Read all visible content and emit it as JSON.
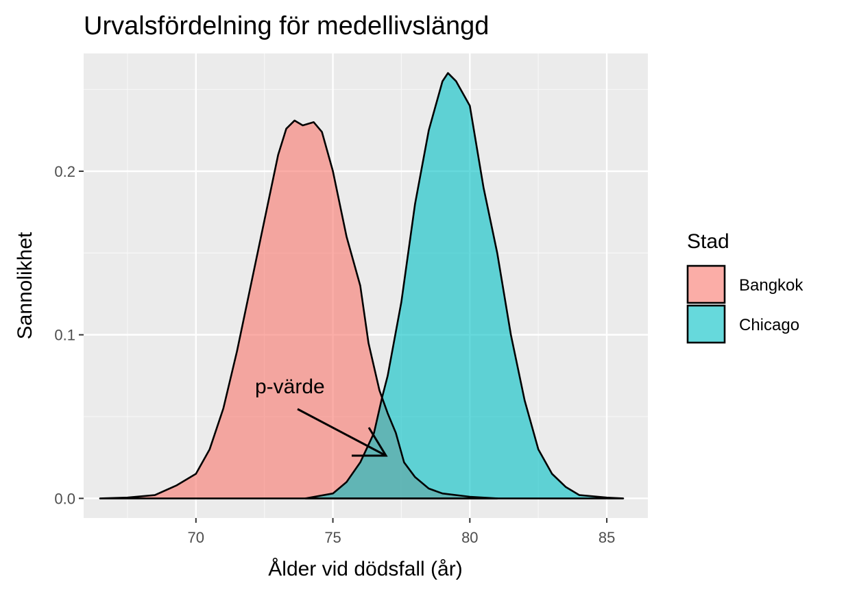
{
  "chart_data": {
    "type": "area",
    "title": "Urvalsfördelning för medellivslängd",
    "xlabel": "Ålder vid dödsfall (år)",
    "ylabel": "Sannolikhet",
    "xlim": [
      65.9,
      86.5
    ],
    "ylim": [
      -0.012,
      0.272
    ],
    "x_ticks": [
      70,
      75,
      80,
      85
    ],
    "x_tick_labels": [
      "70",
      "75",
      "80",
      "85"
    ],
    "x_minor_ticks": [
      67.5,
      72.5,
      77.5,
      82.5
    ],
    "y_ticks": [
      0.0,
      0.1,
      0.2
    ],
    "y_tick_labels": [
      "0.0",
      "0.1",
      "0.2"
    ],
    "y_minor_ticks": [
      0.05,
      0.15,
      0.25
    ],
    "grid": true,
    "legend": {
      "title": "Stad",
      "position": "right"
    },
    "overlap_color": "#7fa8a8",
    "series": [
      {
        "name": "Bangkok",
        "color": "#f8766d",
        "points": [
          [
            66.5,
            0.0
          ],
          [
            67.5,
            0.0005
          ],
          [
            68.5,
            0.002
          ],
          [
            69.3,
            0.008
          ],
          [
            70.0,
            0.015
          ],
          [
            70.5,
            0.03
          ],
          [
            71.0,
            0.055
          ],
          [
            71.5,
            0.09
          ],
          [
            72.0,
            0.13
          ],
          [
            72.5,
            0.17
          ],
          [
            73.0,
            0.21
          ],
          [
            73.3,
            0.226
          ],
          [
            73.6,
            0.231
          ],
          [
            73.9,
            0.228
          ],
          [
            74.3,
            0.23
          ],
          [
            74.6,
            0.224
          ],
          [
            75.0,
            0.2
          ],
          [
            75.5,
            0.16
          ],
          [
            76.0,
            0.13
          ],
          [
            76.3,
            0.095
          ],
          [
            76.7,
            0.066
          ],
          [
            77.0,
            0.052
          ],
          [
            77.3,
            0.04
          ],
          [
            77.6,
            0.022
          ],
          [
            78.0,
            0.013
          ],
          [
            78.5,
            0.006
          ],
          [
            79.0,
            0.003
          ],
          [
            80.0,
            0.001
          ],
          [
            81.0,
            0.0
          ]
        ]
      },
      {
        "name": "Chicago",
        "color": "#00bfc4",
        "points": [
          [
            74.0,
            0.0
          ],
          [
            75.0,
            0.003
          ],
          [
            75.5,
            0.01
          ],
          [
            76.0,
            0.022
          ],
          [
            76.5,
            0.04
          ],
          [
            76.8,
            0.062
          ],
          [
            77.0,
            0.075
          ],
          [
            77.5,
            0.12
          ],
          [
            78.0,
            0.18
          ],
          [
            78.5,
            0.225
          ],
          [
            79.0,
            0.255
          ],
          [
            79.2,
            0.26
          ],
          [
            79.5,
            0.255
          ],
          [
            80.0,
            0.24
          ],
          [
            80.5,
            0.19
          ],
          [
            81.0,
            0.15
          ],
          [
            81.5,
            0.1
          ],
          [
            82.0,
            0.06
          ],
          [
            82.5,
            0.03
          ],
          [
            83.0,
            0.015
          ],
          [
            83.5,
            0.007
          ],
          [
            84.0,
            0.002
          ],
          [
            85.0,
            0.0005
          ],
          [
            85.6,
            0.0
          ]
        ]
      }
    ],
    "annotation": {
      "text": "p-värde",
      "arrow_to": [
        76.9,
        0.025
      ]
    }
  }
}
